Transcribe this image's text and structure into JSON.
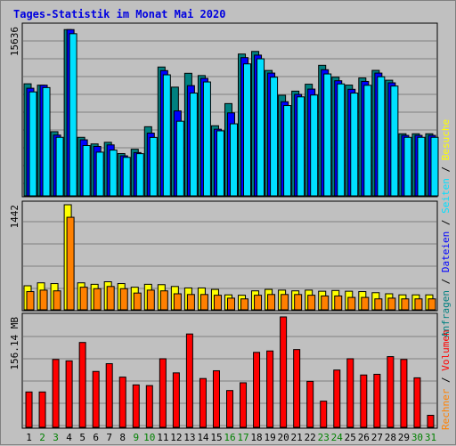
{
  "chart_data": {
    "type": "bar",
    "title": "Tages-Statistik im Monat Mai 2020",
    "categories": [
      "1",
      "2",
      "3",
      "4",
      "5",
      "6",
      "7",
      "8",
      "9",
      "10",
      "11",
      "12",
      "13",
      "14",
      "15",
      "16",
      "17",
      "18",
      "19",
      "20",
      "21",
      "22",
      "23",
      "24",
      "25",
      "26",
      "27",
      "28",
      "29",
      "30",
      "31"
    ],
    "weekend_days": [
      "2",
      "3",
      "9",
      "10",
      "16",
      "17",
      "23",
      "24",
      "30",
      "31"
    ],
    "colors": {
      "anfragen": "#008080",
      "dateien": "#0000ff",
      "seiten": "#00e0ff",
      "besuche": "#ffff00",
      "rechner": "#ff8000",
      "volumen": "#ff0000",
      "title": "#0000e0",
      "weekday_label": "#000000",
      "weekend_label": "#008000"
    },
    "panels": [
      {
        "key": "hits",
        "ylabel": "15636",
        "ymax": 15636,
        "series": [
          {
            "name": "Anfragen",
            "values": [
              10360,
              10230,
              5930,
              15370,
              5410,
              4800,
              4950,
              3910,
              4310,
              6390,
              11910,
              10050,
              11330,
              11120,
              6480,
              8530,
              13110,
              13350,
              11590,
              9300,
              9680,
              10320,
              12070,
              10970,
              10240,
              10900,
              11600,
              10690,
              5740,
              5740,
              5740
            ]
          },
          {
            "name": "Dateien",
            "values": [
              9950,
              10230,
              5620,
              15370,
              5180,
              4570,
              4710,
              3700,
              4000,
              5800,
              11580,
              7850,
              10190,
              10860,
              6160,
              7670,
              12780,
              13010,
              11350,
              8700,
              9380,
              9870,
              11660,
              10640,
              9850,
              10580,
              11350,
              10450,
              5590,
              5590,
              5590
            ]
          },
          {
            "name": "Seiten",
            "values": [
              9610,
              10010,
              5410,
              14990,
              4650,
              4040,
              4230,
              3560,
              3900,
              5400,
              11190,
              6900,
              9500,
              10530,
              6010,
              6660,
              12200,
              12670,
              10970,
              8350,
              9150,
              9320,
              11270,
              10350,
              9500,
              10220,
              11010,
              10150,
              5410,
              5410,
              5410
            ]
          }
        ]
      },
      {
        "key": "visits",
        "ylabel": "1442",
        "ymax": 1442,
        "series": [
          {
            "name": "Besuche",
            "values": [
              330,
              370,
              360,
              1442,
              370,
              350,
              385,
              360,
              310,
              350,
              345,
              320,
              300,
              300,
              280,
              205,
              200,
              260,
              280,
              270,
              260,
              270,
              255,
              265,
              255,
              250,
              235,
              220,
              205,
              205,
              205
            ]
          },
          {
            "name": "Rechner",
            "values": [
              250,
              270,
              260,
              1270,
              310,
              290,
              320,
              290,
              230,
              270,
              260,
              220,
              210,
              210,
              200,
              160,
              150,
              200,
              210,
              210,
              210,
              200,
              190,
              190,
              170,
              170,
              150,
              160,
              150,
              150,
              150
            ]
          }
        ]
      },
      {
        "key": "volume",
        "ylabel": "156.14 MB",
        "ymax": 156.14,
        "series": [
          {
            "name": "Volumen",
            "values": [
              50,
              50,
              96,
              94,
              120,
              79,
              90,
              71,
              60,
              59,
              97,
              77,
              132,
              69,
              80,
              52,
              63,
              106,
              108,
              156.14,
              110,
              65,
              37,
              81,
              97,
              74,
              75,
              100,
              96,
              70,
              17
            ]
          }
        ]
      }
    ],
    "legend": {
      "right_top": [
        "Anfragen",
        "Dateien",
        "Seiten",
        "Besuche"
      ],
      "right_bottom": [
        "Rechner",
        "Volumen"
      ]
    }
  }
}
